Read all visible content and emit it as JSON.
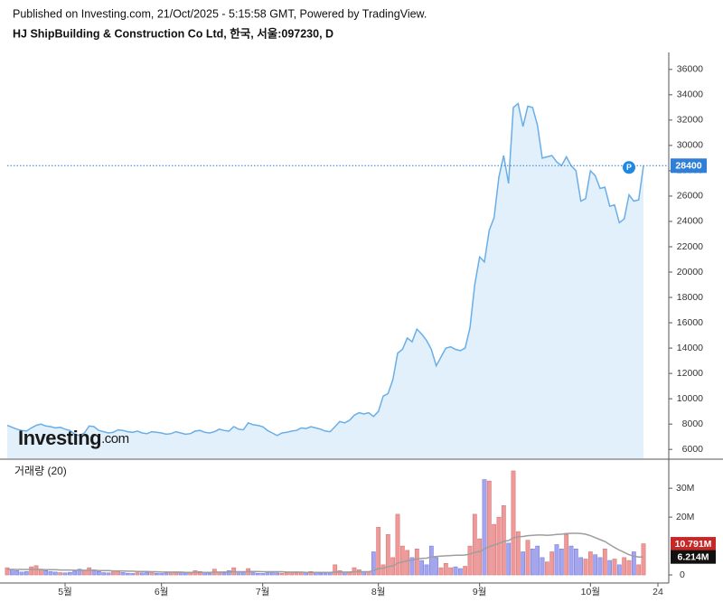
{
  "header": {
    "published": "Published on Investing.com, 21/Oct/2025 - 5:15:58 GMT, Powered by TradingView.",
    "title": "HJ ShipBuilding & Construction Co Ltd, 한국, 서울:097230, D"
  },
  "logo": {
    "brand": "Investing",
    "suffix": ".com"
  },
  "chart_data": [
    {
      "type": "area",
      "categories": [
        null,
        null,
        null,
        null,
        null,
        null,
        null,
        null,
        null,
        null,
        null,
        null,
        "5월",
        null,
        null,
        null,
        null,
        null,
        null,
        null,
        null,
        null,
        null,
        null,
        null,
        null,
        null,
        null,
        null,
        null,
        null,
        null,
        "6월",
        null,
        null,
        null,
        null,
        null,
        null,
        null,
        null,
        null,
        null,
        null,
        null,
        null,
        null,
        null,
        null,
        null,
        null,
        null,
        null,
        "7월",
        null,
        null,
        null,
        null,
        null,
        null,
        null,
        null,
        null,
        null,
        null,
        null,
        null,
        null,
        null,
        null,
        null,
        null,
        null,
        null,
        null,
        null,
        null,
        "8월",
        null,
        null,
        null,
        null,
        null,
        null,
        null,
        null,
        null,
        null,
        null,
        null,
        null,
        null,
        null,
        null,
        null,
        null,
        null,
        null,
        "9월",
        null,
        null,
        null,
        null,
        null,
        null,
        null,
        null,
        null,
        null,
        null,
        null,
        null,
        null,
        null,
        null,
        null,
        null,
        null,
        null,
        null,
        null,
        "10월",
        null,
        null,
        null,
        null,
        null,
        null,
        null,
        null,
        null,
        null,
        null,
        null,
        null,
        "24"
      ],
      "series": [
        {
          "color": "#6aaee8",
          "fill": "#e2f0fb",
          "values": [
            7900,
            7750,
            7600,
            7500,
            7450,
            7700,
            7900,
            8000,
            7850,
            7800,
            7700,
            7750,
            7600,
            7500,
            7200,
            7100,
            7300,
            7850,
            7800,
            7500,
            7400,
            7300,
            7350,
            7550,
            7500,
            7400,
            7350,
            7450,
            7300,
            7250,
            7400,
            7350,
            7300,
            7200,
            7250,
            7400,
            7300,
            7200,
            7250,
            7450,
            7500,
            7350,
            7300,
            7400,
            7600,
            7500,
            7450,
            7800,
            7600,
            7550,
            8100,
            7950,
            7900,
            7800,
            7500,
            7300,
            7100,
            7300,
            7350,
            7450,
            7500,
            7700,
            7650,
            7800,
            7700,
            7600,
            7450,
            7400,
            7800,
            8200,
            8100,
            8300,
            8700,
            8900,
            8800,
            8900,
            8600,
            9000,
            10200,
            10400,
            11500,
            13600,
            13900,
            14800,
            14500,
            15500,
            15100,
            14600,
            13900,
            12600,
            13300,
            14000,
            14100,
            13900,
            13800,
            14000,
            15600,
            19000,
            21200,
            20800,
            23300,
            24300,
            27500,
            29200,
            27000,
            33000,
            33300,
            31500,
            33100,
            33000,
            31600,
            29000,
            29100,
            29200,
            28700,
            28400,
            29100,
            28400,
            28000,
            25600,
            25800,
            28000,
            27600,
            26600,
            26700,
            25200,
            25300,
            23900,
            24200,
            26100,
            25600,
            25700,
            28400,
            null,
            null,
            null
          ]
        }
      ],
      "ylim": [
        5300,
        37200
      ],
      "yticks": [
        6000,
        8000,
        10000,
        12000,
        14000,
        16000,
        18000,
        20000,
        22000,
        24000,
        26000,
        28000,
        30000,
        32000,
        34000,
        36000
      ],
      "last_color": "#2f7fd8",
      "marker_label": "P"
    },
    {
      "type": "bar",
      "title": "거래량 (20)",
      "series": [
        {
          "up_color": "#ef9a9a",
          "down_color": "#a3a6ef",
          "values": [
            2.5,
            2.0,
            1.5,
            1.0,
            1.2,
            2.8,
            3.2,
            2.0,
            1.5,
            1.2,
            1.0,
            0.8,
            0.7,
            0.9,
            1.3,
            2.0,
            1.5,
            2.5,
            1.8,
            1.2,
            0.8,
            0.7,
            1.0,
            1.2,
            0.9,
            0.6,
            0.5,
            0.8,
            0.7,
            0.9,
            1.1,
            0.6,
            0.5,
            0.7,
            1.0,
            0.8,
            0.9,
            0.7,
            0.8,
            1.5,
            1.2,
            0.8,
            0.6,
            2.0,
            1.0,
            0.7,
            1.5,
            2.5,
            1.2,
            0.8,
            2.2,
            1.0,
            0.6,
            0.5,
            0.8,
            1.0,
            0.7,
            0.6,
            0.8,
            0.9,
            0.7,
            1.0,
            0.8,
            1.2,
            0.9,
            0.6,
            0.5,
            0.7,
            3.5,
            1.5,
            1.0,
            0.8,
            2.5,
            1.8,
            1.0,
            1.2,
            8.0,
            16.5,
            3.5,
            14.0,
            6.0,
            21.0,
            10.0,
            8.5,
            6.0,
            9.0,
            5.0,
            3.5,
            10.0,
            6.0,
            2.5,
            4.0,
            2.5,
            2.8,
            2.2,
            3.0,
            10.0,
            21.0,
            12.5,
            33.0,
            32.5,
            17.5,
            20.0,
            24.0,
            11.0,
            36.0,
            15.0,
            8.0,
            12.0,
            9.0,
            10.0,
            6.0,
            4.5,
            8.0,
            10.5,
            9.0,
            14.0,
            10.0,
            9.0,
            6.0,
            5.5,
            8.0,
            7.0,
            6.0,
            9.0,
            5.0,
            5.5,
            3.5,
            6.0,
            5.0,
            8.0,
            3.5,
            10.791,
            null,
            null,
            null
          ],
          "last_label": "10.791M",
          "label_color": "#c62828"
        },
        {
          "color": "#9e9e9e",
          "values": [
            1.9,
            1.9,
            1.9,
            1.9,
            1.9,
            1.9,
            1.9,
            1.9,
            1.8,
            1.8,
            1.8,
            1.7,
            1.7,
            1.7,
            1.6,
            1.6,
            1.6,
            1.6,
            1.6,
            1.5,
            1.5,
            1.5,
            1.4,
            1.4,
            1.4,
            1.3,
            1.3,
            1.2,
            1.2,
            1.2,
            1.1,
            1.1,
            1.0,
            1.0,
            1.0,
            1.0,
            1.0,
            0.9,
            0.9,
            0.9,
            0.9,
            0.9,
            0.9,
            1.0,
            1.0,
            1.0,
            1.0,
            1.1,
            1.1,
            1.1,
            1.2,
            1.2,
            1.2,
            1.1,
            1.1,
            1.1,
            1.1,
            1.1,
            1.0,
            1.0,
            1.0,
            1.0,
            0.9,
            0.9,
            0.9,
            0.9,
            0.9,
            0.9,
            1.0,
            1.0,
            1.0,
            1.0,
            1.1,
            1.1,
            1.1,
            1.1,
            1.5,
            2.2,
            2.3,
            2.9,
            3.1,
            4.1,
            4.5,
            4.9,
            5.1,
            5.5,
            5.7,
            5.8,
            6.2,
            6.4,
            6.5,
            6.6,
            6.7,
            6.8,
            6.8,
            6.9,
            7.2,
            7.8,
            8.1,
            9.0,
            9.8,
            10.3,
            10.9,
            11.6,
            11.9,
            12.8,
            13.2,
            13.3,
            13.6,
            13.7,
            13.8,
            13.8,
            13.7,
            13.8,
            14.0,
            14.1,
            14.3,
            14.4,
            14.4,
            14.3,
            14.1,
            13.6,
            12.9,
            12.2,
            11.6,
            10.5,
            9.5,
            8.6,
            7.8,
            7.0,
            6.5,
            6.2,
            6.214,
            null,
            null,
            null
          ],
          "last_label": "6.214M",
          "label_color": "#111111"
        }
      ],
      "ylim": [
        -2.8,
        38.8
      ],
      "yticks": [
        0,
        {
          "value": 20,
          "label": "20M"
        },
        {
          "value": 30,
          "label": "30M"
        }
      ]
    }
  ]
}
